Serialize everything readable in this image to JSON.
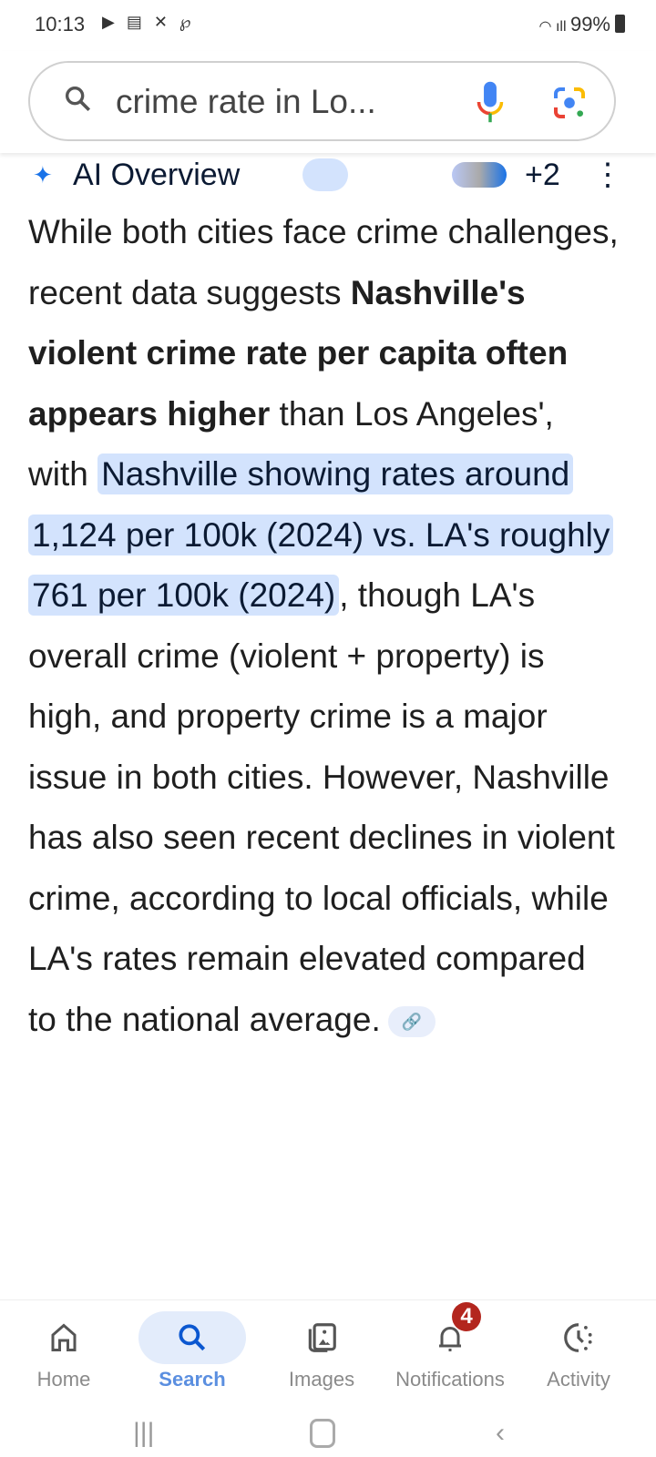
{
  "status": {
    "time": "10:13",
    "app_icons": [
      "youtube-icon",
      "news-icon",
      "bluesky-icon",
      "threads-icon"
    ],
    "battery": "99%"
  },
  "search": {
    "query": "crime rate in Lo..."
  },
  "ai_overview": {
    "title": "AI Overview",
    "more_sources": "+2"
  },
  "body": {
    "p1": "While both cities face crime challenges, recent data suggests ",
    "bold": "Nashville's violent crime rate per capita often appears higher",
    "p2": " than Los Angeles', with ",
    "highlight": "Nashville showing rates around 1,124 per 100k (2024) vs. LA's roughly 761 per 100k (2024)",
    "p3": ", though LA's overall crime (violent + property) is high, and property crime is a major issue in both cities. However, Nashville has also seen recent declines in violent crime, according to local officials, while LA's rates remain elevated compared to the national average."
  },
  "nav": {
    "tabs": [
      {
        "label": "Home"
      },
      {
        "label": "Search"
      },
      {
        "label": "Images"
      },
      {
        "label": "Notifications"
      },
      {
        "label": "Activity"
      }
    ],
    "notification_count": "4"
  }
}
